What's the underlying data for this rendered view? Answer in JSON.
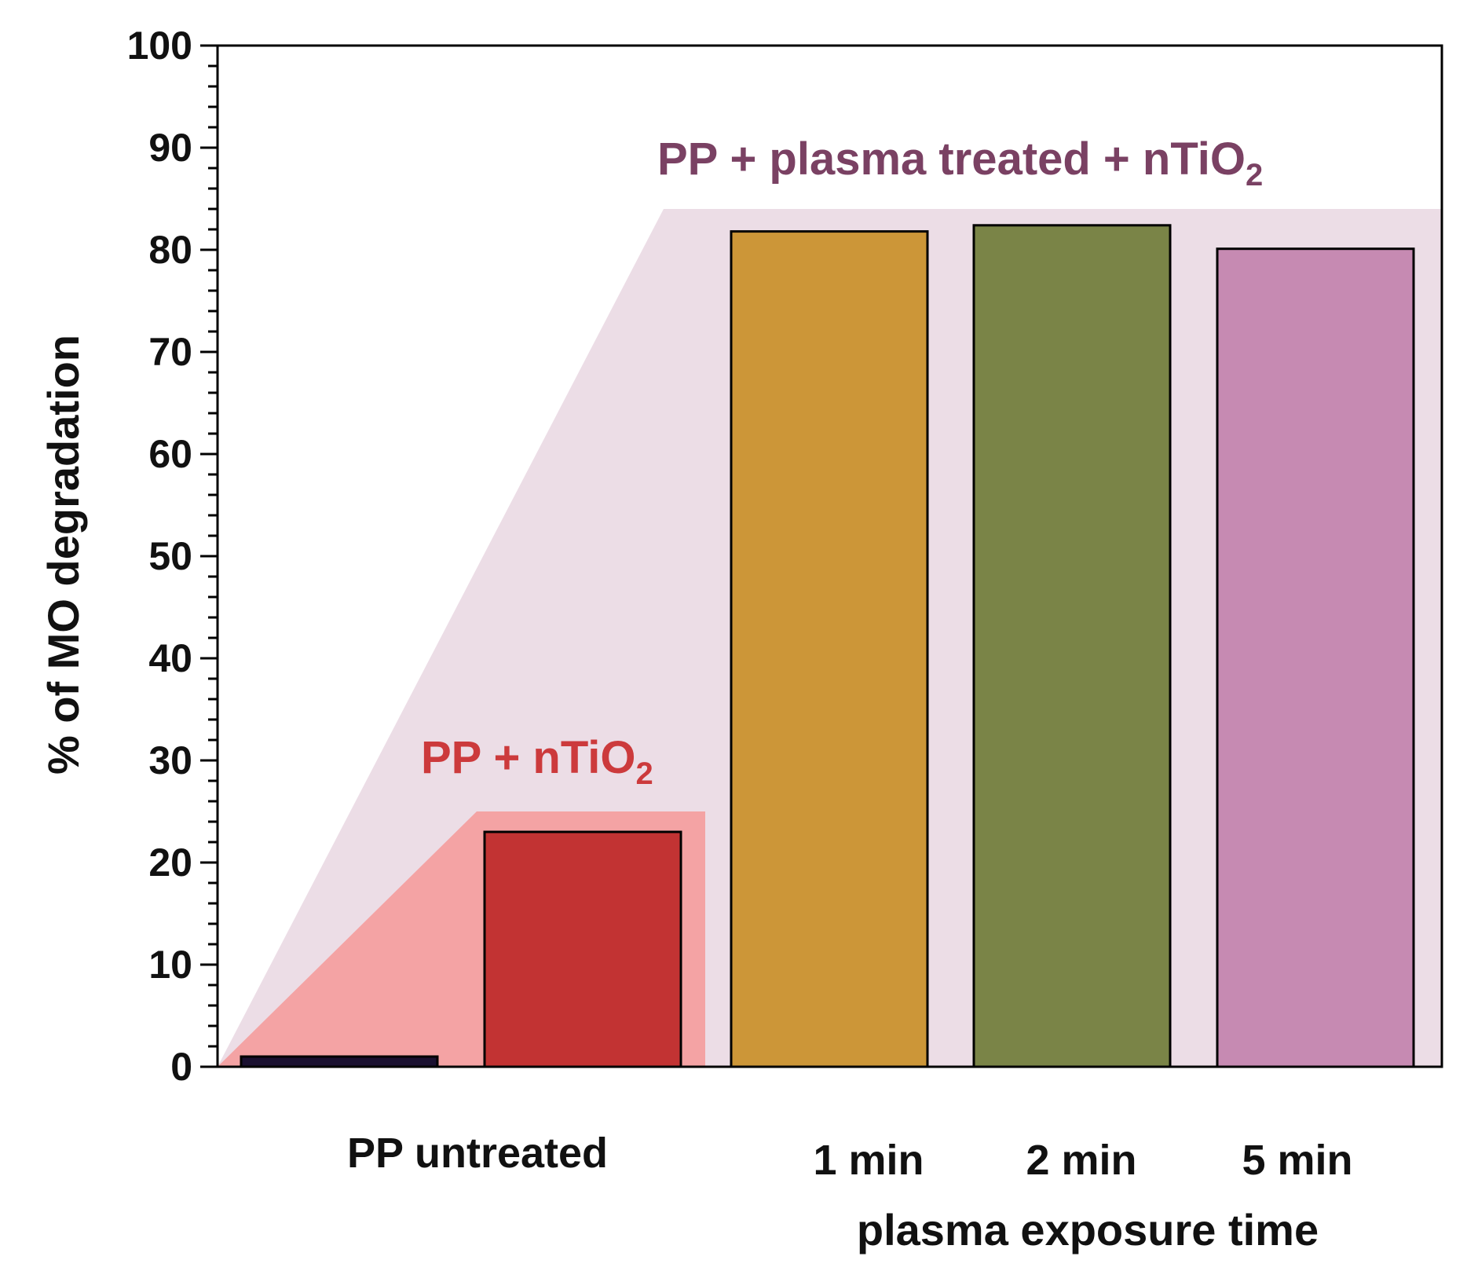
{
  "chart_data": {
    "type": "bar",
    "title": "",
    "xlabel": "plasma exposure time",
    "ylabel": "% of MO degradation",
    "ylim": [
      0,
      100
    ],
    "yticks": [
      0,
      10,
      20,
      30,
      40,
      50,
      60,
      70,
      80,
      90,
      100
    ],
    "y_minor_step": 2,
    "grid": false,
    "categories": [
      "PP untreated",
      "",
      "1 min",
      "2 min",
      "5 min"
    ],
    "values": [
      1,
      23,
      81.8,
      82.4,
      80.1
    ],
    "bar_colors": [
      "#1a1030",
      "#c23333",
      "#cc9638",
      "#7a8447",
      "#c68ab2"
    ],
    "annotations": [
      {
        "name": "nTiO2-label",
        "text_main": "PP + nTiO",
        "subscript": "2",
        "color": "#cc3a3c",
        "band_color": "#f4a3a4",
        "band_top_value": 25
      },
      {
        "name": "plasma-label",
        "text_main": "PP + plasma treated + nTiO",
        "subscript": "2",
        "color": "#7a4163",
        "band_color": "#ecdde6",
        "band_top_value": 84
      }
    ]
  }
}
